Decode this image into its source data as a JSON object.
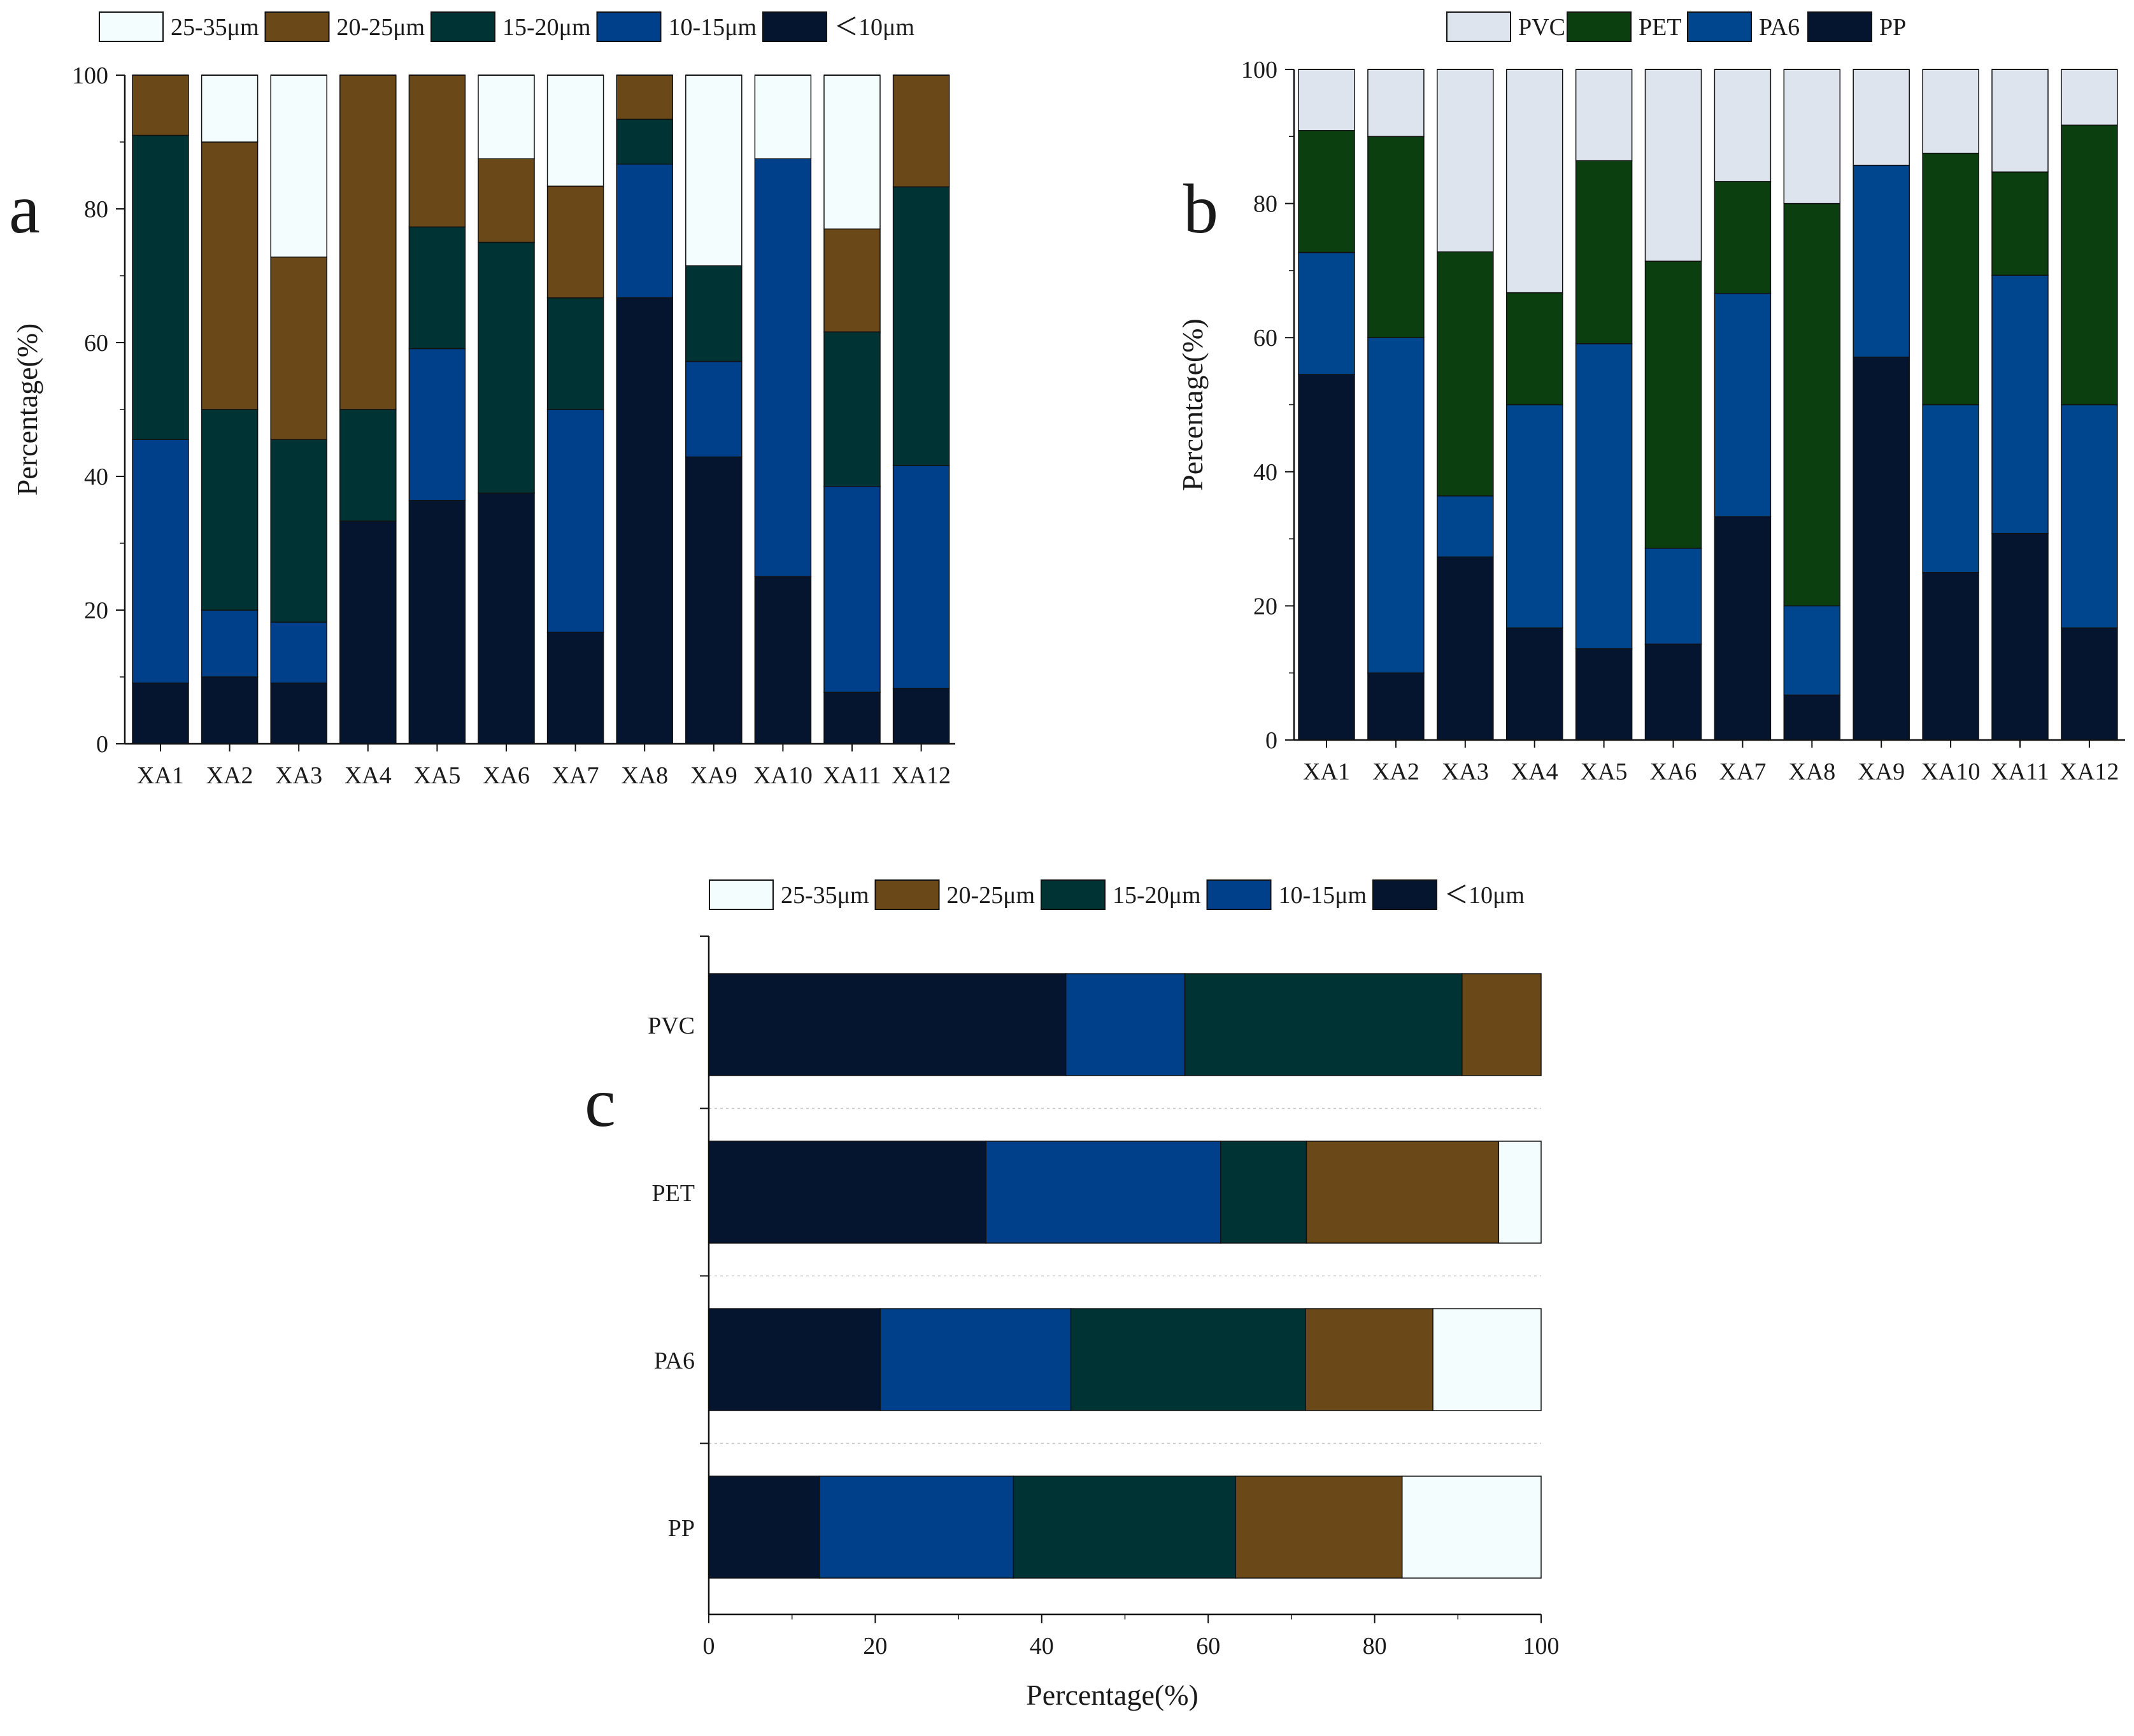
{
  "colors": {
    "lt10": "#05152f",
    "s10_15": "#003f8a",
    "s15_20": "#003334",
    "s20_25": "#6b4818",
    "s25_35": "#f4fdfd",
    "PP": "#05152f",
    "PA6": "#00468e",
    "PET": "#0b3f10",
    "PVC": "#dde4ee"
  },
  "chart_data": [
    {
      "panel": "a",
      "type": "bar",
      "stacked": true,
      "orientation": "vertical",
      "ylabel": "Percentage(%)",
      "xlabel": "",
      "ylim": [
        0,
        100
      ],
      "yticks": [
        "0",
        "20",
        "40",
        "60",
        "80",
        "100"
      ],
      "categories": [
        "XA1",
        "XA2",
        "XA3",
        "XA4",
        "XA5",
        "XA6",
        "XA7",
        "XA8",
        "XA9",
        "XA10",
        "XA11",
        "XA12"
      ],
      "legend": [
        "25-35μm",
        "20-25μm",
        "15-20μm",
        "10-15μm",
        "＜10μm"
      ],
      "series": [
        {
          "name": "＜10μm",
          "color_key": "lt10",
          "values": [
            9.1,
            10,
            9.1,
            33.3,
            36.4,
            37.5,
            16.7,
            66.7,
            42.9,
            25,
            7.7,
            8.3
          ]
        },
        {
          "name": "10-15μm",
          "color_key": "s10_15",
          "values": [
            36.4,
            10,
            9.1,
            0,
            22.7,
            0,
            33.3,
            20,
            14.3,
            62.5,
            30.8,
            33.3
          ]
        },
        {
          "name": "15-20μm",
          "color_key": "s15_20",
          "values": [
            45.5,
            30,
            27.3,
            16.7,
            18.2,
            37.5,
            16.7,
            6.7,
            14.3,
            0,
            23.1,
            41.7
          ]
        },
        {
          "name": "20-25μm",
          "color_key": "s20_25",
          "values": [
            9,
            40,
            27.3,
            50,
            22.7,
            12.5,
            16.7,
            6.6,
            0,
            0,
            15.4,
            16.7
          ]
        },
        {
          "name": "25-35μm",
          "color_key": "s25_35",
          "values": [
            0,
            10,
            27.2,
            0,
            0,
            12.5,
            16.6,
            0,
            28.5,
            12.5,
            23,
            0
          ]
        }
      ]
    },
    {
      "panel": "b",
      "type": "bar",
      "stacked": true,
      "orientation": "vertical",
      "ylabel": "Percentage(%)",
      "xlabel": "",
      "ylim": [
        0,
        100
      ],
      "yticks": [
        "0",
        "20",
        "40",
        "60",
        "80",
        "100"
      ],
      "categories": [
        "XA1",
        "XA2",
        "XA3",
        "XA4",
        "XA5",
        "XA6",
        "XA7",
        "XA8",
        "XA9",
        "XA10",
        "XA11",
        "XA12"
      ],
      "legend": [
        "PVC",
        "PET",
        "PA6",
        "PP"
      ],
      "series": [
        {
          "name": "PP",
          "color_key": "PP",
          "values": [
            54.5,
            10,
            27.3,
            16.7,
            13.6,
            14.3,
            33.3,
            6.7,
            57.1,
            25,
            30.8,
            16.7
          ]
        },
        {
          "name": "PA6",
          "color_key": "PA6",
          "values": [
            18.2,
            50,
            9.1,
            33.3,
            45.5,
            14.3,
            33.3,
            13.3,
            28.6,
            25,
            38.5,
            33.3
          ]
        },
        {
          "name": "PET",
          "color_key": "PET",
          "values": [
            18.2,
            30,
            36.4,
            16.7,
            27.3,
            42.8,
            16.7,
            60,
            0,
            37.5,
            15.4,
            41.7
          ]
        },
        {
          "name": "PVC",
          "color_key": "PVC",
          "values": [
            9.1,
            10,
            27.2,
            33.3,
            13.6,
            28.6,
            16.7,
            20,
            14.3,
            12.5,
            15.3,
            8.3
          ]
        }
      ]
    },
    {
      "panel": "c",
      "type": "bar",
      "stacked": true,
      "orientation": "horizontal",
      "xlabel": "Percentage(%)",
      "ylabel": "",
      "xlim": [
        0,
        100
      ],
      "xticks": [
        "0",
        "20",
        "40",
        "60",
        "80",
        "100"
      ],
      "categories": [
        "PVC",
        "PET",
        "PA6",
        "PP"
      ],
      "legend": [
        "25-35μm",
        "20-25μm",
        "15-20μm",
        "10-15μm",
        "＜10μm"
      ],
      "series": [
        {
          "name": "＜10μm",
          "color_key": "lt10",
          "values": [
            42.9,
            33.3,
            20.6,
            13.3
          ]
        },
        {
          "name": "10-15μm",
          "color_key": "s10_15",
          "values": [
            14.3,
            28.2,
            22.9,
            23.3
          ]
        },
        {
          "name": "15-20μm",
          "color_key": "s15_20",
          "values": [
            33.3,
            10.3,
            28.2,
            26.7
          ]
        },
        {
          "name": "20-25μm",
          "color_key": "s20_25",
          "values": [
            9.5,
            23.1,
            15.3,
            20
          ]
        },
        {
          "name": "25-35μm",
          "color_key": "s25_35",
          "values": [
            0,
            5.1,
            13,
            16.7
          ]
        }
      ]
    }
  ]
}
